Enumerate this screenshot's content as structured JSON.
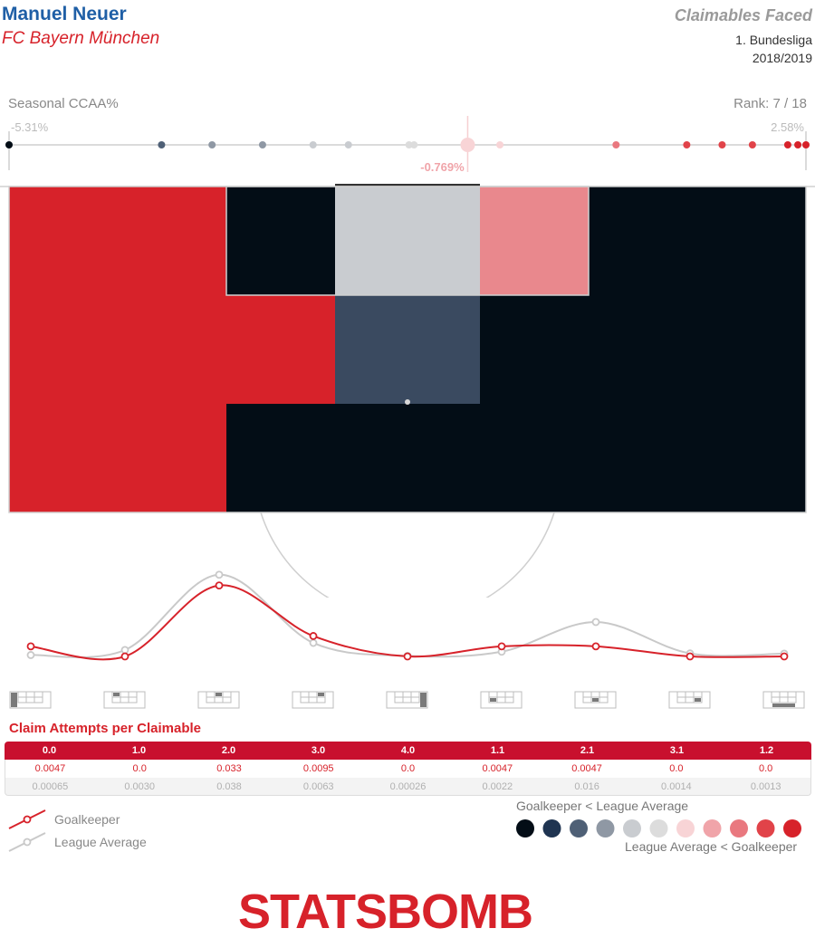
{
  "header": {
    "player": "Manuel Neuer",
    "team": "FC Bayern München",
    "title": "Claimables Faced",
    "competition": "1. Bundesliga",
    "season": "2018/2019"
  },
  "ccaa": {
    "label": "Seasonal CCAA%",
    "rank_label": "Rank: 7 / 18",
    "min_label": "-5.31%",
    "max_label": "2.58%",
    "player_label": "-0.769%",
    "min": -5.31,
    "max": 2.58,
    "player_value": -0.769,
    "league_values": [
      -5.31,
      -3.8,
      -3.3,
      -2.8,
      -2.3,
      -1.95,
      -1.35,
      -1.3,
      -0.75,
      -0.45,
      0.7,
      2.05,
      1.4,
      1.75,
      2.4,
      2.5,
      2.58
    ]
  },
  "colors": {
    "scale": [
      "#030d16",
      "#1f3451",
      "#4f6076",
      "#8f98a4",
      "#c9ccd0",
      "#dcdcdc",
      "#f8d4d6",
      "#f0a4a9",
      "#e9787f",
      "#e14349",
      "#d7222a"
    ],
    "gk_line": "#d7222a",
    "league_line": "#c9c9c9"
  },
  "zones": {
    "cells": [
      {
        "zone": "0.0",
        "color": "#d7222a"
      },
      {
        "zone": "1.0",
        "color": "#030d16"
      },
      {
        "zone": "2.0",
        "color": "#c9ccd0"
      },
      {
        "zone": "3.0",
        "color": "#e9888d"
      },
      {
        "zone": "4.0",
        "color": "#030d16"
      },
      {
        "zone": "1.1",
        "color": "#d7222a"
      },
      {
        "zone": "2.1",
        "color": "#3a4a60"
      },
      {
        "zone": "3.1",
        "color": "#030d16"
      },
      {
        "zone": "1.2",
        "color": "#030d16"
      }
    ]
  },
  "chart_data": {
    "type": "line",
    "title": "Claim Attempts per Claimable",
    "categories": [
      "0.0",
      "1.0",
      "2.0",
      "3.0",
      "4.0",
      "1.1",
      "2.1",
      "3.1",
      "1.2"
    ],
    "series": [
      {
        "name": "Goalkeeper",
        "values": [
          0.0047,
          0.0,
          0.033,
          0.0095,
          0.0,
          0.0047,
          0.0047,
          0.0,
          0.0
        ],
        "labels": [
          "0.0047",
          "0.0",
          "0.033",
          "0.0095",
          "0.0",
          "0.0047",
          "0.0047",
          "0.0",
          "0.0"
        ]
      },
      {
        "name": "League Average",
        "values": [
          0.00065,
          0.003,
          0.038,
          0.0063,
          0.00026,
          0.0022,
          0.016,
          0.0014,
          0.0013
        ],
        "labels": [
          "0.00065",
          "0.0030",
          "0.038",
          "0.0063",
          "0.00026",
          "0.0022",
          "0.016",
          "0.0014",
          "0.0013"
        ]
      }
    ],
    "ylim": [
      0,
      0.04
    ]
  },
  "legend": {
    "goalkeeper": "Goalkeeper",
    "league": "League Average",
    "scale_low": "Goalkeeper < League Average",
    "scale_high": "League Average < Goalkeeper"
  },
  "logo": {
    "text": "STATSBOMB"
  }
}
